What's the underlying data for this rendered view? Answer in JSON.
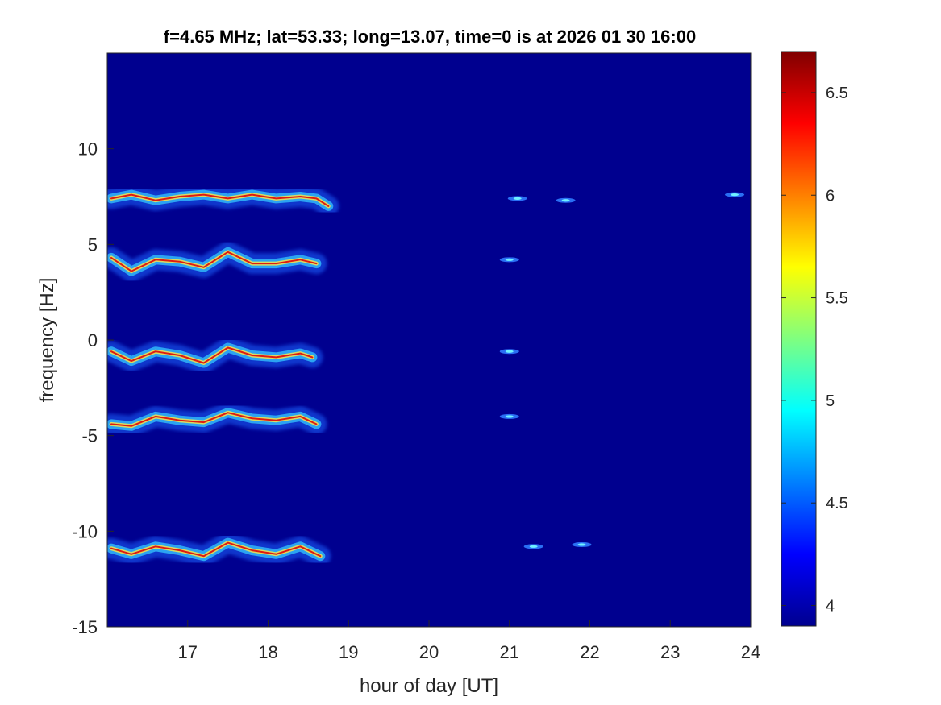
{
  "chart_data": {
    "type": "heatmap",
    "title": "f=4.65 MHz;  lat=53.33; long=13.07, time=0 is at 2026 01 30 16:00",
    "xlabel": "hour of day [UT]",
    "ylabel": "frequency [Hz]",
    "xlim": [
      16.0,
      24.0
    ],
    "ylim": [
      -15,
      15
    ],
    "xticks": [
      17,
      18,
      19,
      20,
      21,
      22,
      23,
      24
    ],
    "yticks": [
      -15,
      -10,
      -5,
      0,
      5,
      10
    ],
    "colormap": "jet",
    "background_color": "#00008f",
    "colorbar": {
      "limits": [
        3.9,
        6.7
      ],
      "ticks": [
        4,
        4.5,
        5,
        5.5,
        6,
        6.5
      ]
    },
    "traces": [
      {
        "label": "band near +7.4 Hz",
        "x": [
          16.05,
          16.3,
          16.6,
          16.9,
          17.2,
          17.5,
          17.8,
          18.1,
          18.4,
          18.6,
          18.75
        ],
        "y": [
          7.4,
          7.6,
          7.3,
          7.5,
          7.6,
          7.4,
          7.6,
          7.4,
          7.5,
          7.4,
          7.0
        ]
      },
      {
        "label": "band near +4.2 Hz",
        "x": [
          16.05,
          16.3,
          16.6,
          16.9,
          17.2,
          17.5,
          17.8,
          18.1,
          18.4,
          18.6
        ],
        "y": [
          4.3,
          3.6,
          4.2,
          4.1,
          3.8,
          4.6,
          4.0,
          4.0,
          4.2,
          4.0
        ]
      },
      {
        "label": "band near -0.7 Hz",
        "x": [
          16.05,
          16.3,
          16.6,
          16.9,
          17.2,
          17.5,
          17.8,
          18.1,
          18.4,
          18.55
        ],
        "y": [
          -0.6,
          -1.1,
          -0.6,
          -0.8,
          -1.2,
          -0.4,
          -0.8,
          -0.9,
          -0.7,
          -0.9
        ]
      },
      {
        "label": "band near -4.1 Hz",
        "x": [
          16.05,
          16.3,
          16.6,
          16.9,
          17.2,
          17.5,
          17.8,
          18.1,
          18.4,
          18.6
        ],
        "y": [
          -4.4,
          -4.5,
          -4.0,
          -4.2,
          -4.3,
          -3.8,
          -4.1,
          -4.2,
          -4.0,
          -4.4
        ]
      },
      {
        "label": "band near -10.9 Hz",
        "x": [
          16.05,
          16.3,
          16.6,
          16.9,
          17.2,
          17.5,
          17.8,
          18.1,
          18.4,
          18.65
        ],
        "y": [
          -10.9,
          -11.2,
          -10.8,
          -11.0,
          -11.3,
          -10.6,
          -11.0,
          -11.2,
          -10.8,
          -11.3
        ]
      }
    ],
    "spots": [
      {
        "x": 21.1,
        "y": 7.4
      },
      {
        "x": 21.7,
        "y": 7.3
      },
      {
        "x": 21.0,
        "y": 4.2
      },
      {
        "x": 21.0,
        "y": -0.6
      },
      {
        "x": 21.0,
        "y": -4.0
      },
      {
        "x": 21.3,
        "y": -10.8
      },
      {
        "x": 21.9,
        "y": -10.7
      },
      {
        "x": 23.8,
        "y": 7.6
      }
    ]
  }
}
